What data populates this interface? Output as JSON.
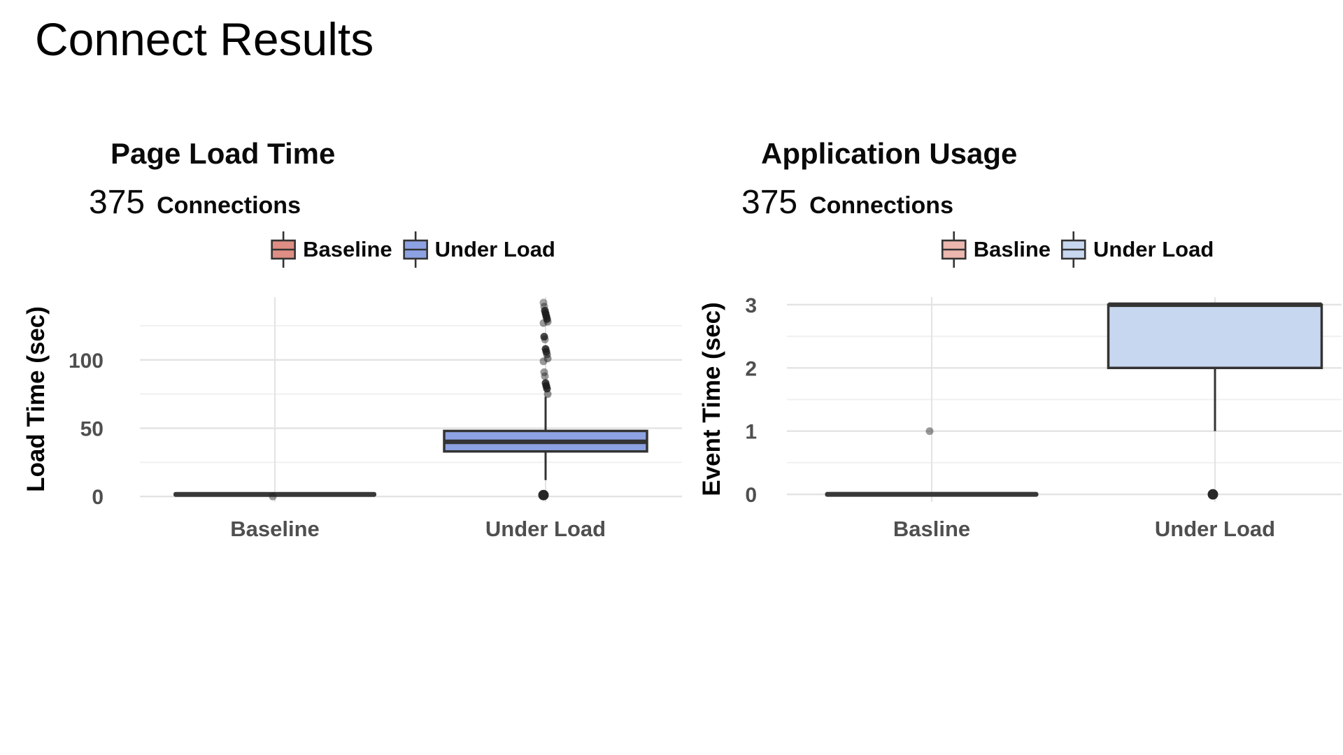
{
  "page": {
    "title": "Connect Results"
  },
  "chart_data": [
    {
      "type": "boxplot",
      "title": "Page Load Time",
      "subtitle_value": "375",
      "subtitle_label": "Connections",
      "ylabel": "Load Time (sec)",
      "xlabel": "",
      "categories": [
        "Baseline",
        "Under Load"
      ],
      "legend": [
        {
          "label": "Baseline",
          "color": "#DE8E84"
        },
        {
          "label": "Under Load",
          "color": "#8DA2E2"
        }
      ],
      "ylim": [
        -4,
        146
      ],
      "yticks": [
        0,
        50,
        100
      ],
      "yticks_minor": [
        25,
        75,
        125
      ],
      "grid": true,
      "legend_position": "top",
      "series": [
        {
          "category": "Baseline",
          "color": "#DE8E84",
          "flat_value": 1.5,
          "outliers": [
            {
              "value": 0,
              "opacity": 0.45
            }
          ]
        },
        {
          "category": "Under Load",
          "color": "#8DA2E2",
          "whisker_low": 12,
          "q1": 33,
          "median": 40,
          "q3": 48,
          "whisker_high": 73,
          "outliers": [
            {
              "value": 142,
              "opacity": 0.4
            },
            {
              "value": 139,
              "opacity": 0.45
            },
            {
              "value": 136,
              "opacity": 0.85
            },
            {
              "value": 134,
              "opacity": 0.9
            },
            {
              "value": 132,
              "opacity": 0.9
            },
            {
              "value": 130,
              "opacity": 0.85
            },
            {
              "value": 128,
              "opacity": 0.5
            },
            {
              "value": 127,
              "opacity": 0.45
            },
            {
              "value": 117,
              "opacity": 0.8
            },
            {
              "value": 115,
              "opacity": 0.45
            },
            {
              "value": 108,
              "opacity": 0.85
            },
            {
              "value": 106,
              "opacity": 0.8
            },
            {
              "value": 104,
              "opacity": 0.6
            },
            {
              "value": 101,
              "opacity": 0.5
            },
            {
              "value": 99,
              "opacity": 0.45
            },
            {
              "value": 91,
              "opacity": 0.45
            },
            {
              "value": 88,
              "opacity": 0.45
            },
            {
              "value": 83,
              "opacity": 0.85
            },
            {
              "value": 81,
              "opacity": 0.9
            },
            {
              "value": 79,
              "opacity": 0.85
            },
            {
              "value": 75,
              "opacity": 0.5
            },
            {
              "value": 1,
              "opacity": 0.95,
              "radius": 7.5
            }
          ]
        }
      ]
    },
    {
      "type": "boxplot",
      "title": "Application Usage",
      "subtitle_value": "375",
      "subtitle_label": "Connections",
      "ylabel": "Event Time (sec)",
      "xlabel": "",
      "categories": [
        "Basline",
        "Under Load"
      ],
      "legend": [
        {
          "label": "Basline",
          "color": "#ECB7AF"
        },
        {
          "label": "Under Load",
          "color": "#C8D7F0"
        }
      ],
      "ylim": [
        -0.12,
        3.12
      ],
      "yticks": [
        0,
        1,
        2,
        3
      ],
      "yticks_minor": [
        0.5,
        1.5,
        2.5
      ],
      "grid": true,
      "legend_position": "top",
      "series": [
        {
          "category": "Basline",
          "color": "#ECB7AF",
          "flat_value": 0,
          "outliers": [
            {
              "value": 1,
              "opacity": 0.45
            }
          ]
        },
        {
          "category": "Under Load",
          "color": "#C8D7F0",
          "whisker_low": 1,
          "q1": 2,
          "median": 3,
          "q3": 3,
          "whisker_high": 3,
          "outliers": [
            {
              "value": 0,
              "opacity": 0.95,
              "radius": 7.5
            }
          ]
        }
      ]
    }
  ],
  "style": {
    "box_border_color": "#333333",
    "outlier_color": "#1c1c1c",
    "grid_major_color": "#e3e3e3",
    "grid_minor_color": "#f0f0f0",
    "axis_text_color": "#4f4f4f"
  }
}
